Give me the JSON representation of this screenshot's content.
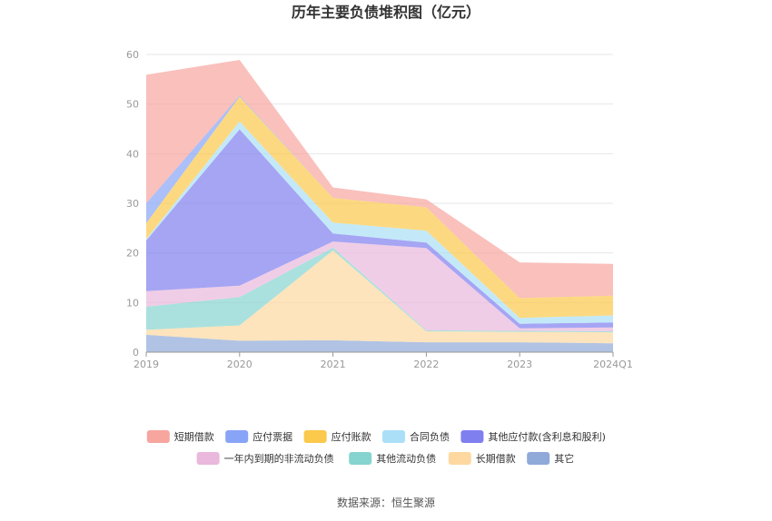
{
  "chart_data": {
    "type": "area",
    "stacked": true,
    "title": "历年主要负债堆积图（亿元）",
    "x": [
      "2019",
      "2020",
      "2021",
      "2022",
      "2023",
      "2024Q1"
    ],
    "ylim": [
      0,
      60
    ],
    "yticks": [
      0,
      10,
      20,
      30,
      40,
      50,
      60
    ],
    "grid": true,
    "legend_position": "bottom",
    "series": [
      {
        "name": "其它",
        "color": "#8fa9d9",
        "values": [
          3.5,
          2.3,
          2.4,
          2.0,
          2.0,
          1.8
        ]
      },
      {
        "name": "长期借款",
        "color": "#fdd8a0",
        "values": [
          1.0,
          3.1,
          18.1,
          2.2,
          2.1,
          2.2
        ]
      },
      {
        "name": "其他流动负债",
        "color": "#86d4d0",
        "values": [
          4.7,
          5.7,
          0.6,
          0.2,
          0.2,
          0.2
        ]
      },
      {
        "name": "一年内到期的非流动负债",
        "color": "#eab8dc",
        "values": [
          3.1,
          2.3,
          1.2,
          16.6,
          0.5,
          0.8
        ]
      },
      {
        "name": "其他应付款(含利息和股利)",
        "color": "#7f7ff0",
        "values": [
          10.2,
          31.5,
          1.6,
          1.1,
          0.9,
          1.0
        ]
      },
      {
        "name": "合同负债",
        "color": "#aadff7",
        "values": [
          0.3,
          1.6,
          2.2,
          2.4,
          1.2,
          1.4
        ]
      },
      {
        "name": "应付账款",
        "color": "#fbc94b",
        "values": [
          3.2,
          5.0,
          5.0,
          4.7,
          4.0,
          4.0
        ]
      },
      {
        "name": "应付票据",
        "color": "#88a4f7",
        "values": [
          4.0,
          0.2,
          0.0,
          0.0,
          0.0,
          0.0
        ]
      },
      {
        "name": "短期借款",
        "color": "#f6a59f",
        "values": [
          25.9,
          7.2,
          2.1,
          1.6,
          7.2,
          6.4
        ]
      }
    ],
    "legend_order": [
      "短期借款",
      "应付票据",
      "应付账款",
      "合同负债",
      "其他应付款(含利息和股利)",
      "一年内到期的非流动负债",
      "其他流动负债",
      "长期借款",
      "其它"
    ]
  },
  "footer": {
    "source": "数据来源：恒生聚源"
  }
}
